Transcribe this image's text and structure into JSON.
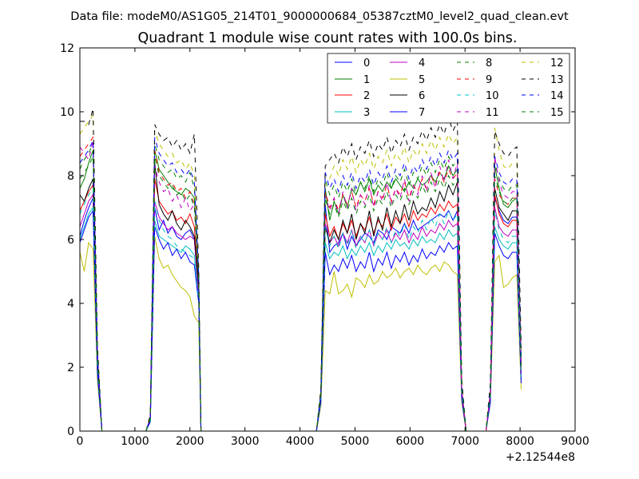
{
  "chart_data": {
    "type": "line",
    "suptitle": "Data file: modeM0/AS1G05_214T01_9000000684_05387cztM0_level2_quad_clean.evt",
    "title": "Quadrant 1 module wise count rates with 100.0s bins.",
    "xlabel": "",
    "ylabel": "",
    "x_offset_label": "+2.12544e8",
    "xlim": [
      0,
      9000
    ],
    "ylim": [
      0,
      12
    ],
    "xticks": [
      0,
      1000,
      2000,
      3000,
      4000,
      5000,
      6000,
      7000,
      8000,
      9000
    ],
    "yticks": [
      0,
      2,
      4,
      6,
      8,
      10,
      12
    ],
    "legend_position": "top-right",
    "legend_columns": 4,
    "x": [
      0,
      80,
      160,
      240,
      320,
      400,
      1200,
      1280,
      1360,
      1440,
      1520,
      1600,
      1680,
      1760,
      1840,
      1920,
      2000,
      2080,
      2160,
      2200,
      4300,
      4380,
      4460,
      4540,
      4620,
      4700,
      4780,
      4860,
      4940,
      5020,
      5100,
      5180,
      5260,
      5340,
      5420,
      5500,
      5580,
      5660,
      5740,
      5820,
      5900,
      5980,
      6060,
      6140,
      6220,
      6300,
      6380,
      6460,
      6540,
      6620,
      6700,
      6780,
      6860,
      6940,
      7020,
      7100,
      7380,
      7460,
      7540,
      7620,
      7700,
      7780,
      7860,
      7940,
      8020
    ],
    "series": [
      {
        "name": "0",
        "color": "#0000ff",
        "dash": "solid",
        "values": [
          6.1,
          6.6,
          7.0,
          7.3,
          2.0,
          0,
          0,
          0.3,
          7.0,
          6.3,
          6.6,
          6.2,
          6.4,
          6.1,
          6.0,
          6.2,
          6.3,
          6.0,
          4.3,
          0,
          0,
          1.0,
          7.1,
          5.6,
          5.8,
          5.9,
          6.2,
          5.7,
          6.1,
          5.8,
          6.0,
          6.2,
          6.1,
          5.9,
          6.3,
          6.2,
          6.0,
          6.4,
          6.3,
          6.2,
          6.5,
          6.2,
          6.6,
          6.3,
          6.4,
          6.5,
          6.6,
          6.7,
          6.8,
          6.7,
          6.9,
          6.6,
          6.9,
          1.2,
          0,
          0,
          0,
          1.1,
          7.3,
          6.9,
          6.6,
          6.5,
          6.7,
          6.7,
          2.0
        ]
      },
      {
        "name": "1",
        "color": "#008000",
        "dash": "solid",
        "values": [
          7.6,
          7.9,
          8.4,
          8.8,
          2.3,
          0,
          0,
          0.4,
          8.8,
          8.2,
          8.0,
          7.8,
          7.6,
          7.5,
          7.4,
          7.6,
          7.5,
          7.3,
          4.6,
          0,
          0,
          1.1,
          7.6,
          6.6,
          7.2,
          6.8,
          7.4,
          7.0,
          7.6,
          7.4,
          7.8,
          7.5,
          7.9,
          7.4,
          7.7,
          7.5,
          7.8,
          7.6,
          7.9,
          7.7,
          7.5,
          7.8,
          7.6,
          7.9,
          7.7,
          7.8,
          8.0,
          7.8,
          8.1,
          7.9,
          8.3,
          8.0,
          8.2,
          1.3,
          0,
          0,
          0,
          1.2,
          8.3,
          7.6,
          7.1,
          7.0,
          7.2,
          7.3,
          2.2
        ]
      },
      {
        "name": "2",
        "color": "#ff0000",
        "dash": "solid",
        "values": [
          6.9,
          7.2,
          7.5,
          7.7,
          2.1,
          0,
          0,
          0.4,
          7.9,
          7.2,
          7.0,
          6.8,
          6.9,
          6.6,
          6.7,
          6.5,
          6.8,
          6.4,
          4.4,
          0,
          0,
          1.0,
          6.8,
          6.1,
          6.4,
          6.0,
          6.5,
          6.2,
          6.6,
          6.1,
          6.5,
          6.3,
          6.7,
          6.2,
          6.6,
          6.4,
          6.8,
          6.3,
          6.7,
          6.5,
          6.8,
          6.4,
          6.9,
          6.6,
          6.8,
          6.7,
          7.0,
          6.8,
          7.1,
          6.9,
          7.2,
          7.0,
          7.1,
          1.2,
          0,
          0,
          0,
          1.1,
          7.4,
          6.8,
          6.5,
          6.4,
          6.6,
          6.6,
          1.9
        ]
      },
      {
        "name": "3",
        "color": "#00bfbf",
        "dash": "solid",
        "values": [
          6.0,
          6.4,
          6.8,
          7.0,
          1.9,
          0,
          0,
          0.3,
          6.6,
          6.1,
          6.0,
          5.9,
          5.8,
          5.7,
          5.6,
          5.8,
          5.7,
          5.5,
          4.1,
          0,
          0,
          0.9,
          5.9,
          5.4,
          5.6,
          5.5,
          5.8,
          5.4,
          5.7,
          5.5,
          5.8,
          5.6,
          5.9,
          5.5,
          5.8,
          5.6,
          5.9,
          5.7,
          6.0,
          5.8,
          5.9,
          5.7,
          6.0,
          5.8,
          6.1,
          5.9,
          6.0,
          5.9,
          6.2,
          6.0,
          6.3,
          6.1,
          6.2,
          1.1,
          0,
          0,
          0,
          1.0,
          6.4,
          6.0,
          5.8,
          5.7,
          5.9,
          5.9,
          1.6
        ]
      },
      {
        "name": "4",
        "color": "#bf00bf",
        "dash": "solid",
        "values": [
          6.4,
          6.8,
          7.2,
          7.4,
          2.0,
          0,
          0,
          0.3,
          7.2,
          6.7,
          6.5,
          6.3,
          6.4,
          6.2,
          6.1,
          6.0,
          6.1,
          6.0,
          4.2,
          0,
          0,
          1.0,
          6.5,
          5.9,
          6.1,
          5.8,
          6.2,
          5.9,
          6.3,
          5.8,
          6.1,
          5.9,
          6.3,
          5.8,
          6.2,
          6.0,
          6.3,
          5.9,
          6.2,
          6.0,
          6.3,
          5.9,
          6.2,
          6.0,
          6.4,
          6.1,
          6.3,
          6.2,
          6.5,
          6.3,
          6.6,
          6.4,
          6.5,
          1.1,
          0,
          0,
          0,
          1.0,
          7.0,
          6.4,
          6.2,
          6.1,
          6.3,
          6.3,
          1.8
        ]
      },
      {
        "name": "5",
        "color": "#bfbf00",
        "dash": "solid",
        "values": [
          5.6,
          5.0,
          5.9,
          5.7,
          1.6,
          0,
          0,
          0.3,
          6.1,
          5.4,
          5.1,
          5.2,
          4.9,
          4.7,
          4.5,
          4.4,
          4.2,
          3.6,
          3.4,
          0,
          0,
          0.8,
          4.4,
          4.3,
          5.0,
          4.3,
          4.4,
          4.6,
          4.2,
          4.8,
          4.7,
          4.5,
          4.9,
          4.6,
          4.7,
          5.0,
          4.8,
          4.9,
          5.1,
          4.8,
          5.0,
          5.1,
          4.9,
          5.2,
          5.0,
          4.9,
          5.1,
          5.2,
          5.0,
          5.3,
          5.2,
          5.0,
          4.9,
          0.9,
          0,
          0,
          0,
          0.9,
          5.3,
          5.5,
          4.5,
          4.6,
          4.8,
          4.9,
          1.3
        ]
      },
      {
        "name": "6",
        "color": "#000000",
        "dash": "solid",
        "values": [
          7.4,
          7.2,
          7.6,
          7.9,
          2.1,
          0,
          0,
          0.4,
          8.4,
          7.1,
          6.8,
          6.6,
          6.9,
          6.5,
          6.3,
          6.6,
          6.4,
          6.1,
          4.5,
          0,
          0,
          1.0,
          6.4,
          5.9,
          6.3,
          6.0,
          6.6,
          6.2,
          6.8,
          6.0,
          6.5,
          6.2,
          6.9,
          6.1,
          6.7,
          6.3,
          7.0,
          6.4,
          6.9,
          6.5,
          7.1,
          6.6,
          7.2,
          6.8,
          7.0,
          6.9,
          7.3,
          7.0,
          7.5,
          7.2,
          7.7,
          7.4,
          7.8,
          1.2,
          0,
          0,
          0,
          1.1,
          7.6,
          7.0,
          6.8,
          6.6,
          6.9,
          6.9,
          2.1
        ]
      },
      {
        "name": "7",
        "color": "#0000ff",
        "dash": "solid",
        "values": [
          5.9,
          6.3,
          6.7,
          6.9,
          1.8,
          0,
          0,
          0.3,
          6.4,
          6.0,
          5.7,
          5.9,
          5.5,
          5.7,
          5.4,
          5.6,
          5.3,
          5.2,
          4.0,
          0,
          0,
          0.9,
          5.6,
          4.9,
          5.2,
          5.0,
          5.4,
          5.1,
          5.5,
          5.0,
          5.3,
          5.1,
          5.6,
          5.0,
          5.4,
          5.2,
          5.6,
          5.1,
          5.5,
          5.3,
          5.6,
          5.2,
          5.5,
          5.3,
          5.7,
          5.4,
          5.6,
          5.5,
          5.8,
          5.6,
          5.9,
          5.7,
          5.8,
          1.0,
          0,
          0,
          0,
          0.9,
          6.2,
          5.8,
          5.5,
          5.4,
          5.6,
          5.6,
          1.5
        ]
      },
      {
        "name": "8",
        "color": "#008000",
        "dash": "dashed",
        "values": [
          8.2,
          8.5,
          8.7,
          9.0,
          2.4,
          0,
          0,
          0.4,
          9.0,
          8.5,
          8.3,
          8.1,
          8.2,
          7.9,
          8.0,
          7.8,
          8.1,
          7.6,
          4.8,
          0,
          0,
          1.2,
          7.9,
          7.4,
          7.7,
          7.3,
          7.8,
          7.5,
          7.9,
          7.4,
          7.8,
          7.6,
          8.0,
          7.5,
          7.9,
          7.7,
          8.1,
          7.6,
          8.0,
          7.8,
          8.2,
          7.7,
          8.1,
          7.9,
          8.3,
          8.0,
          8.4,
          8.1,
          8.5,
          8.2,
          8.6,
          8.3,
          8.5,
          1.4,
          0,
          0,
          0,
          1.3,
          8.4,
          7.9,
          7.6,
          7.5,
          7.7,
          7.7,
          2.3
        ]
      },
      {
        "name": "9",
        "color": "#ff0000",
        "dash": "dashed",
        "values": [
          8.6,
          8.8,
          9.0,
          9.2,
          2.5,
          0,
          0,
          0.4,
          8.8,
          8.1,
          7.9,
          7.7,
          7.8,
          7.5,
          7.6,
          7.3,
          7.5,
          7.1,
          4.7,
          0,
          0,
          1.1,
          7.5,
          7.0,
          7.3,
          6.9,
          7.4,
          7.1,
          7.5,
          7.0,
          7.4,
          7.2,
          7.6,
          7.1,
          7.5,
          7.3,
          7.7,
          7.2,
          7.6,
          7.4,
          7.8,
          7.3,
          7.7,
          7.5,
          7.9,
          7.6,
          8.0,
          7.7,
          8.1,
          7.8,
          8.2,
          7.9,
          8.1,
          1.3,
          0,
          0,
          0,
          1.2,
          7.9,
          7.4,
          7.2,
          7.1,
          7.3,
          7.3,
          2.1
        ]
      },
      {
        "name": "10",
        "color": "#00bfbf",
        "dash": "dashed",
        "values": [
          6.8,
          7.1,
          7.4,
          7.6,
          2.1,
          0,
          0,
          0.3,
          7.2,
          6.6,
          6.3,
          6.1,
          6.0,
          5.8,
          5.7,
          5.6,
          5.5,
          5.4,
          4.1,
          0,
          0,
          1.0,
          6.4,
          5.8,
          6.1,
          5.7,
          6.2,
          5.8,
          6.3,
          5.7,
          6.1,
          5.9,
          6.3,
          5.8,
          6.2,
          6.0,
          6.4,
          5.9,
          6.3,
          6.1,
          6.5,
          6.0,
          6.4,
          6.2,
          6.6,
          6.3,
          6.7,
          6.4,
          6.8,
          6.5,
          6.9,
          6.6,
          6.8,
          1.2,
          0,
          0,
          0,
          1.1,
          6.9,
          6.3,
          6.0,
          5.9,
          6.1,
          6.1,
          1.7
        ]
      },
      {
        "name": "11",
        "color": "#bf00bf",
        "dash": "dashed",
        "values": [
          8.9,
          8.7,
          8.5,
          9.1,
          2.4,
          0,
          0,
          0.4,
          8.3,
          7.8,
          7.5,
          7.6,
          7.2,
          7.4,
          7.0,
          7.3,
          6.9,
          7.1,
          4.6,
          0,
          0,
          1.1,
          7.4,
          6.9,
          7.3,
          6.8,
          7.5,
          7.0,
          7.6,
          6.9,
          7.4,
          7.1,
          7.7,
          7.0,
          7.5,
          7.2,
          7.8,
          7.1,
          7.6,
          7.3,
          7.9,
          7.2,
          7.7,
          7.4,
          8.0,
          7.5,
          8.1,
          7.6,
          8.3,
          7.8,
          8.5,
          7.9,
          8.4,
          1.3,
          0,
          0,
          0,
          1.2,
          8.6,
          7.8,
          7.4,
          7.3,
          7.5,
          7.5,
          2.0
        ]
      },
      {
        "name": "12",
        "color": "#bfbf00",
        "dash": "dashed",
        "values": [
          9.3,
          9.5,
          9.7,
          9.9,
          2.6,
          0,
          0,
          0.5,
          9.4,
          9.0,
          8.8,
          8.6,
          8.7,
          8.4,
          8.5,
          8.2,
          8.4,
          8.0,
          5.0,
          0,
          0,
          1.3,
          8.0,
          7.9,
          8.3,
          8.0,
          8.5,
          8.2,
          8.6,
          8.1,
          8.5,
          8.3,
          8.7,
          8.2,
          8.6,
          8.4,
          8.8,
          8.3,
          8.7,
          8.5,
          8.9,
          8.4,
          8.8,
          8.6,
          9.0,
          8.7,
          9.1,
          8.8,
          9.2,
          8.9,
          9.3,
          9.0,
          9.2,
          1.5,
          0,
          0,
          0,
          1.4,
          9.5,
          8.8,
          8.3,
          8.2,
          8.4,
          8.4,
          2.4
        ]
      },
      {
        "name": "13",
        "color": "#000000",
        "dash": "dashed",
        "values": [
          9.7,
          9.7,
          9.6,
          10.1,
          2.7,
          0,
          0,
          0.5,
          9.6,
          9.3,
          9.1,
          9.2,
          8.9,
          9.1,
          8.8,
          9.0,
          8.7,
          9.3,
          5.1,
          0,
          0,
          1.3,
          8.3,
          8.5,
          8.7,
          8.4,
          8.9,
          8.6,
          9.0,
          8.5,
          8.9,
          8.7,
          9.1,
          8.6,
          9.0,
          8.8,
          9.2,
          8.7,
          9.1,
          8.9,
          9.3,
          8.8,
          9.2,
          9.0,
          9.4,
          9.1,
          9.5,
          9.2,
          9.6,
          9.3,
          9.8,
          9.4,
          9.7,
          1.6,
          0,
          0,
          0,
          1.5,
          9.4,
          9.0,
          8.7,
          8.6,
          8.8,
          8.9,
          2.6
        ]
      },
      {
        "name": "14",
        "color": "#0000ff",
        "dash": "dashed",
        "values": [
          8.4,
          8.6,
          8.8,
          9.1,
          2.4,
          0,
          0,
          0.4,
          9.2,
          8.7,
          8.5,
          8.3,
          8.4,
          8.1,
          8.2,
          8.0,
          8.2,
          7.8,
          4.9,
          0,
          0,
          1.2,
          8.1,
          7.6,
          7.9,
          7.5,
          8.0,
          7.7,
          8.1,
          7.6,
          8.0,
          7.8,
          8.2,
          7.7,
          8.1,
          7.9,
          8.3,
          7.8,
          8.2,
          8.0,
          8.4,
          7.9,
          8.3,
          8.1,
          8.5,
          8.2,
          8.6,
          8.3,
          8.7,
          8.4,
          8.8,
          8.5,
          8.7,
          1.4,
          0,
          0,
          0,
          1.3,
          8.6,
          8.1,
          7.8,
          7.7,
          7.9,
          7.9,
          2.3
        ]
      },
      {
        "name": "15",
        "color": "#008000",
        "dash": "dashed",
        "values": [
          7.9,
          8.1,
          8.3,
          8.6,
          2.3,
          0,
          0,
          0.4,
          8.6,
          8.0,
          7.8,
          7.6,
          7.7,
          7.4,
          7.5,
          7.2,
          7.4,
          7.0,
          4.6,
          0,
          0,
          1.1,
          7.3,
          6.8,
          7.1,
          6.7,
          7.2,
          6.9,
          7.3,
          6.8,
          7.2,
          7.0,
          7.4,
          6.9,
          7.3,
          7.1,
          7.5,
          7.0,
          7.4,
          7.2,
          7.6,
          7.1,
          7.5,
          7.3,
          7.7,
          7.4,
          7.8,
          7.5,
          7.9,
          7.6,
          8.0,
          7.7,
          7.9,
          1.3,
          0,
          0,
          0,
          1.2,
          8.0,
          7.5,
          7.2,
          7.1,
          7.3,
          7.3,
          2.0
        ]
      }
    ]
  }
}
